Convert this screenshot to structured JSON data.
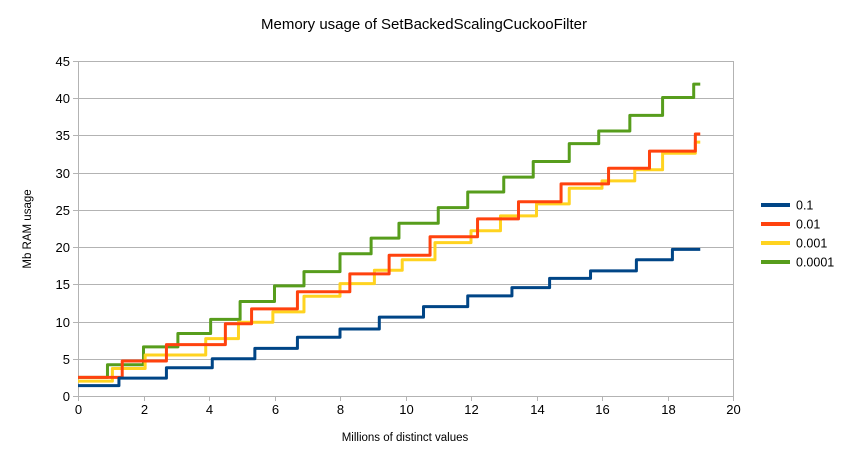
{
  "chart_data": {
    "type": "line",
    "line_style": "step-after",
    "title": "Memory usage of SetBackedScalingCuckooFilter",
    "xlabel": "Millions of distinct values",
    "ylabel": "Mb RAM usage",
    "xlim": [
      0,
      20
    ],
    "ylim": [
      0,
      45
    ],
    "x_ticks": [
      0,
      2,
      4,
      6,
      8,
      10,
      12,
      14,
      16,
      18,
      20
    ],
    "y_ticks": [
      0,
      5,
      10,
      15,
      20,
      25,
      30,
      35,
      40,
      45
    ],
    "grid": "horizontal",
    "legend_position": "right",
    "colors": {
      "grid": "#b3b3b3",
      "axis": "#b3b3b3",
      "text": "#000000",
      "background": "#ffffff"
    },
    "series": [
      {
        "name": "0.1",
        "color": "#004586",
        "points": [
          [
            0,
            1.4
          ],
          [
            1.25,
            2.4
          ],
          [
            2.7,
            3.8
          ],
          [
            4.1,
            5.0
          ],
          [
            5.4,
            6.4
          ],
          [
            6.7,
            7.9
          ],
          [
            8.0,
            9.0
          ],
          [
            9.2,
            10.6
          ],
          [
            10.55,
            12.0
          ],
          [
            11.9,
            13.45
          ],
          [
            13.25,
            14.55
          ],
          [
            14.4,
            15.8
          ],
          [
            15.65,
            16.8
          ],
          [
            17.05,
            18.3
          ],
          [
            18.15,
            19.7
          ],
          [
            19.0,
            19.7
          ]
        ]
      },
      {
        "name": "0.01",
        "color": "#ff420e",
        "points": [
          [
            0,
            2.5
          ],
          [
            1.35,
            4.7
          ],
          [
            2.7,
            6.9
          ],
          [
            4.5,
            9.7
          ],
          [
            5.3,
            11.7
          ],
          [
            6.7,
            14.0
          ],
          [
            8.3,
            16.4
          ],
          [
            9.5,
            18.9
          ],
          [
            10.75,
            21.4
          ],
          [
            12.2,
            23.8
          ],
          [
            13.45,
            26.1
          ],
          [
            14.75,
            28.5
          ],
          [
            16.2,
            30.6
          ],
          [
            17.45,
            32.9
          ],
          [
            18.85,
            35.2
          ],
          [
            19.0,
            35.2
          ]
        ]
      },
      {
        "name": "0.001",
        "color": "#ffd320",
        "points": [
          [
            0,
            2.0
          ],
          [
            1.05,
            3.7
          ],
          [
            2.05,
            5.5
          ],
          [
            3.9,
            7.7
          ],
          [
            4.9,
            9.9
          ],
          [
            5.95,
            11.3
          ],
          [
            6.9,
            13.4
          ],
          [
            8.0,
            15.1
          ],
          [
            9.05,
            16.9
          ],
          [
            9.9,
            18.3
          ],
          [
            10.9,
            20.6
          ],
          [
            12.0,
            22.2
          ],
          [
            12.9,
            24.2
          ],
          [
            14.0,
            25.8
          ],
          [
            15.0,
            27.9
          ],
          [
            16.0,
            28.9
          ],
          [
            17.0,
            30.4
          ],
          [
            17.85,
            32.6
          ],
          [
            18.85,
            34.1
          ],
          [
            19.0,
            34.1
          ]
        ]
      },
      {
        "name": "0.0001",
        "color": "#579d1c",
        "points": [
          [
            0,
            2.5
          ],
          [
            0.9,
            4.2
          ],
          [
            2.0,
            6.6
          ],
          [
            3.05,
            8.4
          ],
          [
            4.05,
            10.3
          ],
          [
            4.95,
            12.7
          ],
          [
            6.0,
            14.8
          ],
          [
            6.9,
            16.7
          ],
          [
            8.0,
            19.1
          ],
          [
            8.95,
            21.2
          ],
          [
            9.8,
            23.2
          ],
          [
            11.0,
            25.3
          ],
          [
            11.9,
            27.4
          ],
          [
            13.0,
            29.4
          ],
          [
            13.9,
            31.5
          ],
          [
            15.0,
            33.9
          ],
          [
            15.9,
            35.6
          ],
          [
            16.85,
            37.7
          ],
          [
            17.85,
            40.1
          ],
          [
            18.8,
            41.9
          ],
          [
            19.0,
            41.9
          ]
        ]
      }
    ],
    "draw_order": [
      "0.0001",
      "0.001",
      "0.01",
      "0.1"
    ]
  },
  "legend": {
    "items": [
      {
        "label": "0.1",
        "color": "#004586"
      },
      {
        "label": "0.01",
        "color": "#ff420e"
      },
      {
        "label": "0.001",
        "color": "#ffd320"
      },
      {
        "label": "0.0001",
        "color": "#579d1c"
      }
    ]
  }
}
